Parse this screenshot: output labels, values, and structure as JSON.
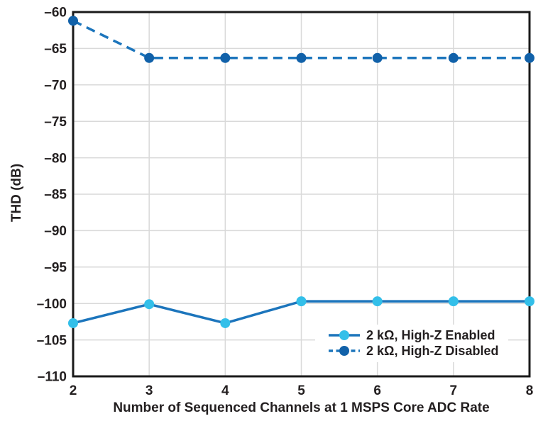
{
  "chart_data": {
    "type": "line",
    "title": "",
    "xlabel": "Number of Sequenced Channels at 1 MSPS Core ADC Rate",
    "ylabel": "THD (dB)",
    "x": [
      2,
      3,
      4,
      5,
      6,
      7,
      8
    ],
    "xtick_labels": [
      "2",
      "3",
      "4",
      "5",
      "6",
      "7",
      "8"
    ],
    "xlim": [
      2,
      8
    ],
    "ylim": [
      -110,
      -60
    ],
    "yticks": [
      -60,
      -65,
      -70,
      -75,
      -80,
      -85,
      -90,
      -95,
      -100,
      -105,
      -110
    ],
    "ytick_labels": [
      "–60",
      "–65",
      "–70",
      "–75",
      "–80",
      "–85",
      "–90",
      "–95",
      "–100",
      "–105",
      "–110"
    ],
    "grid": true,
    "grid_color": "#d9d9d9",
    "axis_color": "#1a1a1a",
    "tick_label_color": "#231f20",
    "legend_position": "inside-bottom-right",
    "series": [
      {
        "name": "2 kΩ, High-Z Enabled",
        "line_style": "solid",
        "line_color": "#1c75bc",
        "marker": "circle",
        "marker_color": "#33bfe9",
        "values": [
          -102.7,
          -100.1,
          -102.7,
          -99.7,
          -99.7,
          -99.7,
          -99.7
        ]
      },
      {
        "name": "2 kΩ, High-Z Disabled",
        "line_style": "dashed",
        "line_color": "#1c75bc",
        "marker": "circle",
        "marker_color": "#1161a9",
        "values": [
          -61.2,
          -66.3,
          -66.3,
          -66.3,
          -66.3,
          -66.3,
          -66.3
        ]
      }
    ]
  }
}
